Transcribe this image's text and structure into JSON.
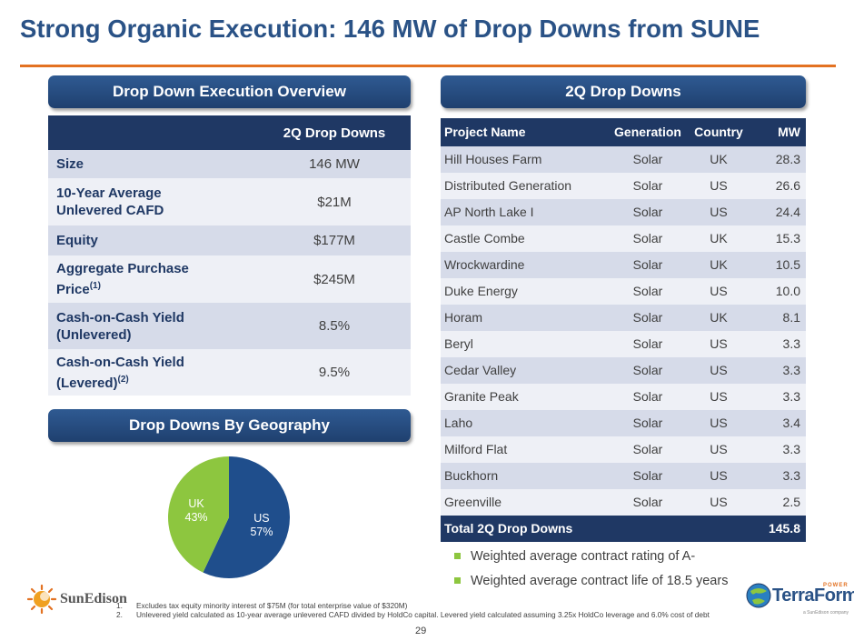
{
  "title": "Strong Organic Execution: 146 MW of Drop Downs from SUNE",
  "sections": {
    "overview": "Drop Down Execution Overview",
    "drop_downs": "2Q Drop Downs",
    "geography": "Drop Downs By Geography"
  },
  "overview_table": {
    "column_header": "2Q Drop Downs",
    "rows": [
      {
        "label": "Size",
        "value": "146 MW"
      },
      {
        "label": "10-Year Average",
        "label2": "Unlevered CAFD",
        "value": "$21M"
      },
      {
        "label": "Equity",
        "value": "$177M"
      },
      {
        "label": "Aggregate Purchase",
        "label2": "Price",
        "sup": "(1)",
        "value": "$245M"
      },
      {
        "label": "Cash-on-Cash Yield",
        "label2": "(Unlevered)",
        "value": "8.5%"
      },
      {
        "label": "Cash-on-Cash Yield",
        "label2": "(Levered)",
        "sup": "(2)",
        "value": "9.5%"
      }
    ]
  },
  "projects_table": {
    "headers": {
      "name": "Project Name",
      "generation": "Generation",
      "country": "Country",
      "mw": "MW"
    },
    "rows": [
      {
        "name": "Hill Houses Farm",
        "generation": "Solar",
        "country": "UK",
        "mw": "28.3"
      },
      {
        "name": "Distributed Generation",
        "generation": "Solar",
        "country": "US",
        "mw": "26.6"
      },
      {
        "name": "AP North Lake I",
        "generation": "Solar",
        "country": "US",
        "mw": "24.4"
      },
      {
        "name": "Castle Combe",
        "generation": "Solar",
        "country": "UK",
        "mw": "15.3"
      },
      {
        "name": "Wrockwardine",
        "generation": "Solar",
        "country": "UK",
        "mw": "10.5"
      },
      {
        "name": "Duke Energy",
        "generation": "Solar",
        "country": "US",
        "mw": "10.0"
      },
      {
        "name": "Horam",
        "generation": "Solar",
        "country": "UK",
        "mw": "8.1"
      },
      {
        "name": "Beryl",
        "generation": "Solar",
        "country": "US",
        "mw": "3.3"
      },
      {
        "name": "Cedar Valley",
        "generation": "Solar",
        "country": "US",
        "mw": "3.3"
      },
      {
        "name": "Granite Peak",
        "generation": "Solar",
        "country": "US",
        "mw": "3.3"
      },
      {
        "name": "Laho",
        "generation": "Solar",
        "country": "US",
        "mw": "3.4"
      },
      {
        "name": "Milford Flat",
        "generation": "Solar",
        "country": "US",
        "mw": "3.3"
      },
      {
        "name": "Buckhorn",
        "generation": "Solar",
        "country": "US",
        "mw": "3.3"
      },
      {
        "name": "Greenville",
        "generation": "Solar",
        "country": "US",
        "mw": "2.5"
      }
    ],
    "total": {
      "label": "Total 2Q Drop Downs",
      "mw": "145.8"
    }
  },
  "bullets": [
    "Weighted average contract rating of A-",
    "Weighted average contract life of 18.5 years"
  ],
  "chart_data": {
    "type": "pie",
    "title": "Drop Downs By Geography",
    "slices": [
      {
        "label": "US",
        "value": 57,
        "display": "57%",
        "color": "#1f4e8c"
      },
      {
        "label": "UK",
        "value": 43,
        "display": "43%",
        "color": "#8dc63f"
      }
    ]
  },
  "footnotes": [
    {
      "num": "1.",
      "text": "Excludes tax equity minority interest of $75M (for total enterprise value of $320M)"
    },
    {
      "num": "2.",
      "text": "Unlevered yield calculated as 10-year average unlevered CAFD divided by HoldCo capital. Levered yield calculated assuming 3.25x HoldCo leverage and 6.0% cost of debt"
    }
  ],
  "page_number": "29",
  "logos": {
    "sunedison": "SunEdison",
    "terraform": "TerraForm",
    "terraform_power": "POWER",
    "terraform_sub": "a SunEdison company"
  },
  "colors": {
    "navy": "#1f3864",
    "title_blue": "#2a5286",
    "orange": "#e37222",
    "green": "#8dc63f"
  }
}
